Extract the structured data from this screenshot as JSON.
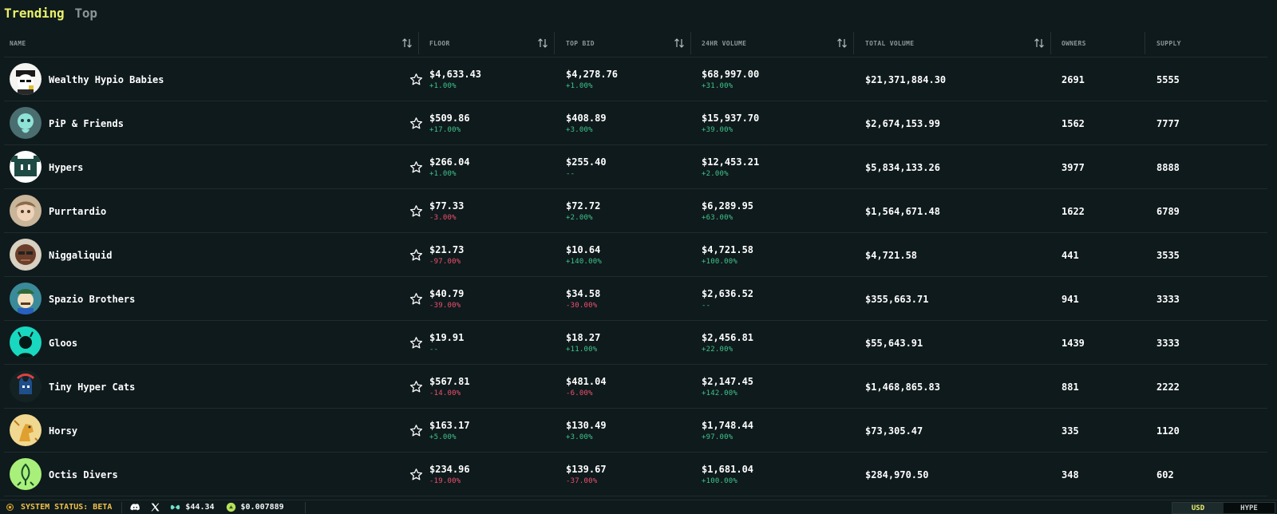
{
  "tabs": [
    {
      "label": "Trending",
      "active": true
    },
    {
      "label": "Top",
      "active": false
    }
  ],
  "columns": {
    "name": "NAME",
    "floor": "FLOOR",
    "top_bid": "TOP BID",
    "vol24": "24HR VOLUME",
    "total": "TOTAL VOLUME",
    "owners": "OWNERS",
    "supply": "SUPPLY"
  },
  "rows": [
    {
      "name": "Wealthy Hypio Babies",
      "floor": "$4,633.43",
      "floor_chg": "+1.00%",
      "bid": "$4,278.76",
      "bid_chg": "+1.00%",
      "vol": "$68,997.00",
      "vol_chg": "+31.00%",
      "total": "$21,371,884.30",
      "owners": "2691",
      "supply": "5555",
      "avatar": "hypio-avatar"
    },
    {
      "name": "PiP & Friends",
      "floor": "$509.86",
      "floor_chg": "+17.00%",
      "bid": "$408.89",
      "bid_chg": "+3.00%",
      "vol": "$15,937.70",
      "vol_chg": "+39.00%",
      "total": "$2,674,153.99",
      "owners": "1562",
      "supply": "7777",
      "avatar": "pip-avatar"
    },
    {
      "name": "Hypers",
      "floor": "$266.04",
      "floor_chg": "+1.00%",
      "bid": "$255.40",
      "bid_chg": "--",
      "vol": "$12,453.21",
      "vol_chg": "+2.00%",
      "total": "$5,834,133.26",
      "owners": "3977",
      "supply": "8888",
      "avatar": "hypers-avatar"
    },
    {
      "name": "Purrtardio",
      "floor": "$77.33",
      "floor_chg": "-3.00%",
      "bid": "$72.72",
      "bid_chg": "+2.00%",
      "vol": "$6,289.95",
      "vol_chg": "+63.00%",
      "total": "$1,564,671.48",
      "owners": "1622",
      "supply": "6789",
      "avatar": "purrtardio-avatar"
    },
    {
      "name": "Niggaliquid",
      "floor": "$21.73",
      "floor_chg": "-97.00%",
      "bid": "$10.64",
      "bid_chg": "+140.00%",
      "vol": "$4,721.58",
      "vol_chg": "+100.00%",
      "total": "$4,721.58",
      "owners": "441",
      "supply": "3535",
      "avatar": "niggaliquid-avatar"
    },
    {
      "name": "Spazio Brothers",
      "floor": "$40.79",
      "floor_chg": "-39.00%",
      "bid": "$34.58",
      "bid_chg": "-30.00%",
      "vol": "$2,636.52",
      "vol_chg": "--",
      "total": "$355,663.71",
      "owners": "941",
      "supply": "3333",
      "avatar": "spazio-avatar"
    },
    {
      "name": "Gloos",
      "floor": "$19.91",
      "floor_chg": "--",
      "bid": "$18.27",
      "bid_chg": "+11.00%",
      "vol": "$2,456.81",
      "vol_chg": "+22.00%",
      "total": "$55,643.91",
      "owners": "1439",
      "supply": "3333",
      "avatar": "gloos-avatar"
    },
    {
      "name": "Tiny Hyper Cats",
      "floor": "$567.81",
      "floor_chg": "-14.00%",
      "bid": "$481.04",
      "bid_chg": "-6.00%",
      "vol": "$2,147.45",
      "vol_chg": "+142.00%",
      "total": "$1,468,865.83",
      "owners": "881",
      "supply": "2222",
      "avatar": "cats-avatar"
    },
    {
      "name": "Horsy",
      "floor": "$163.17",
      "floor_chg": "+5.00%",
      "bid": "$130.49",
      "bid_chg": "+3.00%",
      "vol": "$1,748.44",
      "vol_chg": "+97.00%",
      "total": "$73,305.47",
      "owners": "335",
      "supply": "1120",
      "avatar": "horsy-avatar"
    },
    {
      "name": "Octis Divers",
      "floor": "$234.96",
      "floor_chg": "-19.00%",
      "bid": "$139.67",
      "bid_chg": "-37.00%",
      "vol": "$1,681.04",
      "vol_chg": "+100.00%",
      "total": "$284,970.50",
      "owners": "348",
      "supply": "602",
      "avatar": "octis-avatar"
    }
  ],
  "footer": {
    "status": "SYSTEM STATUS: BETA",
    "price_1": "$44.34",
    "price_2": "$0.007889",
    "currency_on": "USD",
    "currency_off": "HYPE"
  },
  "colors": {
    "accent": "#e9f06a",
    "positive": "#3ec58b",
    "negative": "#f0506e",
    "background": "#0f1a1c"
  }
}
